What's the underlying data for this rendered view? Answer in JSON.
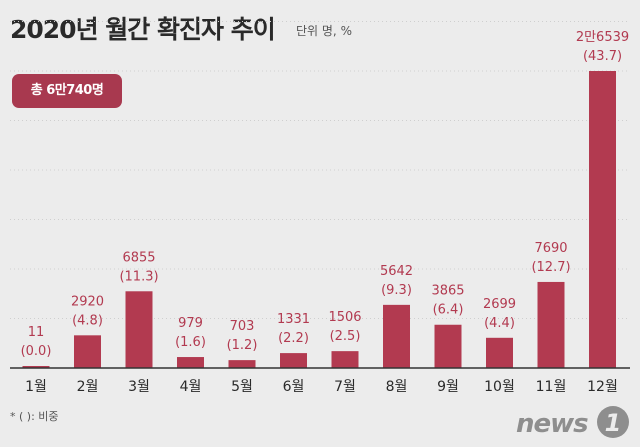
{
  "title": "2020년 월간 확진자 추이",
  "unit_label": "단위 명, %",
  "total_label": "총 6만740명",
  "footnote": "* (  ): 비중",
  "logo_text": "news1",
  "colors": {
    "bar": "#b23a50",
    "label": "#b23a50",
    "grid": "#cfcfcf",
    "axis": "#333333",
    "badge": "#a8394f"
  },
  "chart_data": {
    "type": "bar",
    "title": "2020년 월간 확진자 추이",
    "categories": [
      "1월",
      "2월",
      "3월",
      "4월",
      "5월",
      "6월",
      "7월",
      "8월",
      "9월",
      "10월",
      "11월",
      "12월"
    ],
    "values": [
      11,
      2920,
      6855,
      979,
      703,
      1331,
      1506,
      5642,
      3865,
      2699,
      7690,
      26539
    ],
    "value_labels": [
      "11",
      "2920",
      "6855",
      "979",
      "703",
      "1331",
      "1506",
      "5642",
      "3865",
      "2699",
      "7690",
      "2만6539"
    ],
    "shares": [
      "(0.0)",
      "(4.8)",
      "(11.3)",
      "(1.6)",
      "(1.2)",
      "(2.2)",
      "(2.5)",
      "(9.3)",
      "(6.4)",
      "(4.4)",
      "(12.7)",
      "(43.7)"
    ],
    "xlabel": "",
    "ylabel": "명",
    "ylim": [
      0,
      27500
    ],
    "grid": true
  }
}
